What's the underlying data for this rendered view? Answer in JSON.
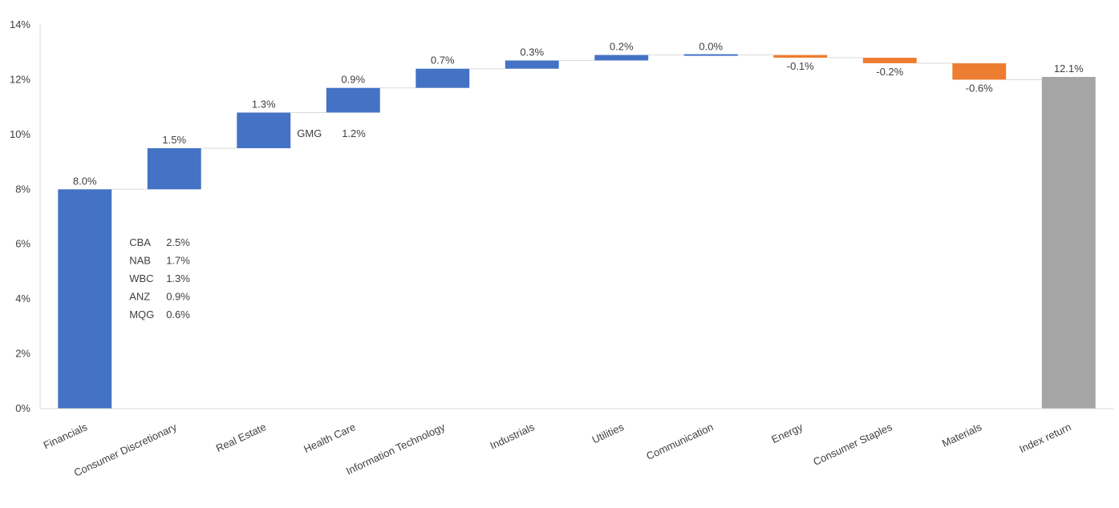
{
  "chart_data": {
    "type": "bar",
    "subtype": "waterfall",
    "title": "",
    "xlabel": "",
    "ylabel": "",
    "ylim": [
      0,
      14
    ],
    "y_ticks": [
      0,
      2,
      4,
      6,
      8,
      10,
      12,
      14
    ],
    "y_tick_labels": [
      "0%",
      "2%",
      "4%",
      "6%",
      "8%",
      "10%",
      "12%",
      "14%"
    ],
    "grid": false,
    "legend": "none",
    "colors": {
      "increase": "#4472C4",
      "decrease": "#ED7D31",
      "total": "#A5A5A5",
      "connector": "#D9D9D9",
      "axis": "#D9D9D9"
    },
    "categories": [
      "Financials",
      "Consumer Discretionary",
      "Real Estate",
      "Health Care",
      "Information Technology",
      "Industrials",
      "Utilities",
      "Communication",
      "Energy",
      "Consumer Staples",
      "Materials",
      "Index return"
    ],
    "values": [
      8.0,
      1.5,
      1.3,
      0.9,
      0.7,
      0.3,
      0.2,
      0.0,
      -0.1,
      -0.2,
      -0.6,
      12.1
    ],
    "kinds": [
      "increase",
      "increase",
      "increase",
      "increase",
      "increase",
      "increase",
      "increase",
      "increase",
      "decrease",
      "decrease",
      "decrease",
      "total"
    ],
    "data_labels": [
      "8.0%",
      "1.5%",
      "1.3%",
      "0.9%",
      "0.7%",
      "0.3%",
      "0.2%",
      "0.0%",
      "-0.1%",
      "-0.2%",
      "-0.6%",
      "12.1%"
    ],
    "annotations": [
      {
        "category": "Financials",
        "items": [
          {
            "ticker": "CBA",
            "value": "2.5%"
          },
          {
            "ticker": "NAB",
            "value": "1.7%"
          },
          {
            "ticker": "WBC",
            "value": "1.3%"
          },
          {
            "ticker": "ANZ",
            "value": "0.9%"
          },
          {
            "ticker": "MQG",
            "value": "0.6%"
          }
        ]
      },
      {
        "category": "Real Estate",
        "items": [
          {
            "ticker": "GMG",
            "value": "1.2%"
          }
        ]
      }
    ]
  }
}
